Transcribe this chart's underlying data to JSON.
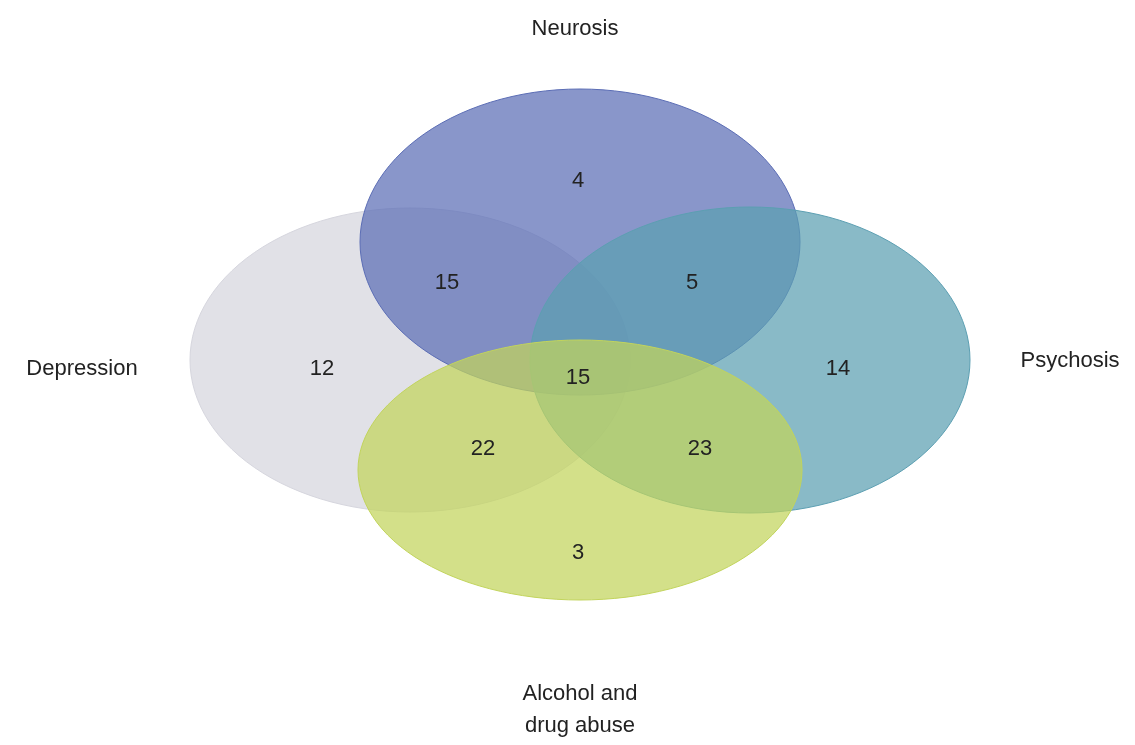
{
  "chart_data": {
    "type": "other",
    "categories": [
      null,
      null,
      null,
      null,
      null,
      null,
      null,
      null,
      null
    ],
    "values": [
      4,
      15,
      5,
      12,
      15,
      14,
      22,
      23,
      3
    ],
    "data_labels": true,
    "annotations": [
      "Depression",
      "Neurosis",
      "Psychosis",
      "Alcohol and drug abuse"
    ]
  }
}
